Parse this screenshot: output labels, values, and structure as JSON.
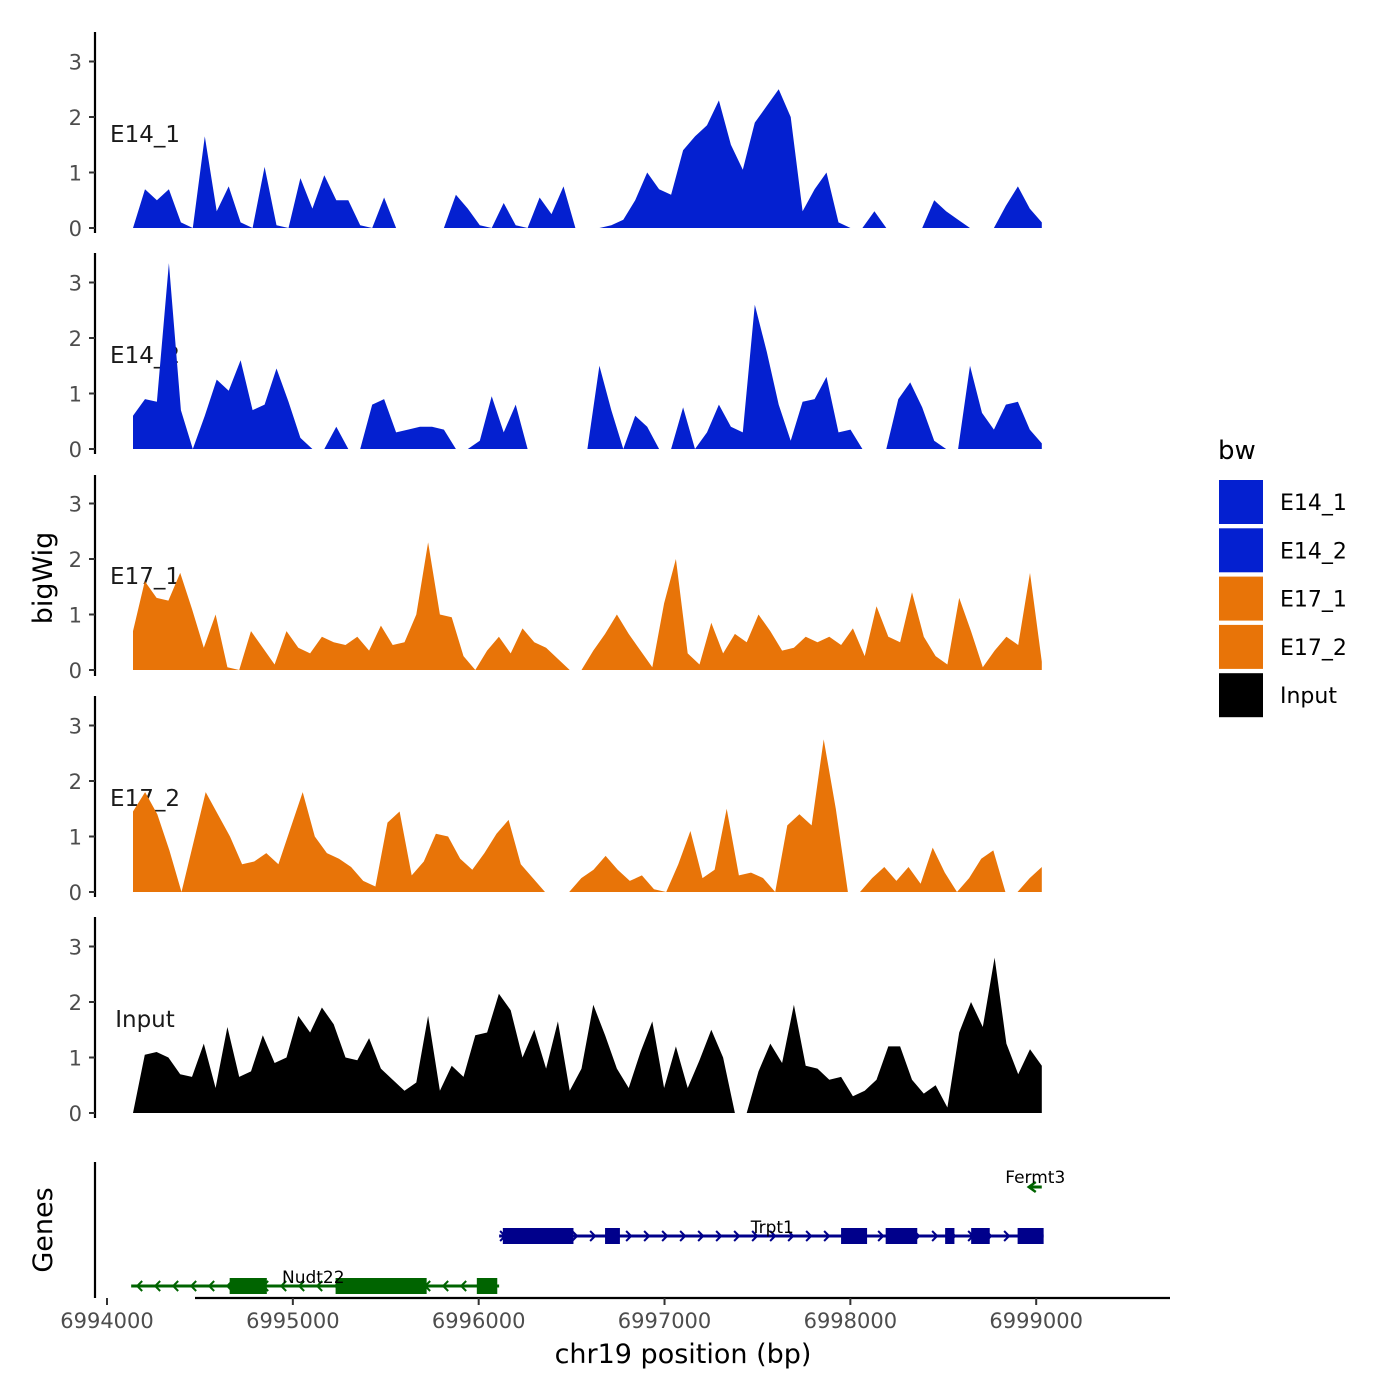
{
  "chart_data": {
    "type": "area",
    "title": "",
    "ylabel": "bigWig",
    "ylim": [
      0,
      3.5
    ],
    "yticks": [
      "0",
      "1",
      "2",
      "3"
    ],
    "x_range": [
      6993930,
      6999720
    ],
    "track_x_extent": [
      6994140,
      6999030
    ],
    "legend": {
      "title": "bw",
      "position": "right",
      "items": [
        {
          "label": "E14_1",
          "color": "#0420D0"
        },
        {
          "label": "E14_2",
          "color": "#0420D0"
        },
        {
          "label": "E17_1",
          "color": "#E87408"
        },
        {
          "label": "E17_2",
          "color": "#E87408"
        },
        {
          "label": "Input",
          "color": "#000000"
        }
      ]
    },
    "series": [
      {
        "name": "E14_1",
        "color": "#0420D0",
        "values": [
          0,
          0.7,
          0.5,
          0.7,
          0.1,
          0,
          1.65,
          0.3,
          0.75,
          0.1,
          0,
          1.1,
          0.05,
          0,
          0.9,
          0.35,
          0.95,
          0.5,
          0.5,
          0.05,
          0,
          0.55,
          0,
          0,
          0,
          0,
          0,
          0.6,
          0.35,
          0.05,
          0,
          0.45,
          0.05,
          0,
          0.55,
          0.25,
          0.75,
          0,
          0,
          0,
          0.05,
          0.15,
          0.5,
          1.0,
          0.7,
          0.6,
          1.4,
          1.65,
          1.85,
          2.3,
          1.5,
          1.05,
          1.9,
          2.2,
          2.5,
          2.0,
          0.3,
          0.7,
          1.0,
          0.1,
          0,
          0,
          0.3,
          0,
          0,
          0,
          0,
          0.5,
          0.3,
          0.15,
          0,
          0,
          0,
          0.4,
          0.75,
          0.35,
          0.1
        ]
      },
      {
        "name": "E14_2",
        "color": "#0420D0",
        "values": [
          0.6,
          0.9,
          0.85,
          3.35,
          0.7,
          0,
          0.6,
          1.25,
          1.05,
          1.6,
          0.7,
          0.8,
          1.45,
          0.85,
          0.2,
          0,
          0,
          0.4,
          0,
          0,
          0.8,
          0.9,
          0.3,
          0.35,
          0.4,
          0.4,
          0.35,
          0,
          0,
          0.15,
          0.95,
          0.3,
          0.8,
          0,
          0,
          0,
          0,
          0,
          0,
          1.5,
          0.7,
          0,
          0.6,
          0.4,
          0,
          0,
          0.75,
          0,
          0.3,
          0.8,
          0.4,
          0.3,
          2.6,
          1.75,
          0.8,
          0.15,
          0.85,
          0.9,
          1.3,
          0.3,
          0.35,
          0,
          0,
          0,
          0.9,
          1.2,
          0.75,
          0.15,
          0,
          0,
          1.5,
          0.65,
          0.35,
          0.8,
          0.85,
          0.35,
          0.1
        ]
      },
      {
        "name": "E17_1",
        "color": "#E87408",
        "values": [
          0.7,
          1.6,
          1.3,
          1.25,
          1.75,
          1.1,
          0.4,
          1.0,
          0.05,
          0,
          0.7,
          0.4,
          0.1,
          0.7,
          0.4,
          0.3,
          0.6,
          0.5,
          0.45,
          0.6,
          0.35,
          0.8,
          0.45,
          0.5,
          1.0,
          2.3,
          1.0,
          0.95,
          0.25,
          0,
          0.35,
          0.6,
          0.3,
          0.75,
          0.5,
          0.4,
          0.2,
          0,
          0,
          0.35,
          0.65,
          1.0,
          0.65,
          0.35,
          0.05,
          1.2,
          2.0,
          0.3,
          0.1,
          0.85,
          0.3,
          0.65,
          0.5,
          1.0,
          0.7,
          0.35,
          0.4,
          0.6,
          0.5,
          0.6,
          0.45,
          0.75,
          0.25,
          1.15,
          0.6,
          0.5,
          1.4,
          0.6,
          0.25,
          0.1,
          1.3,
          0.7,
          0.05,
          0.35,
          0.6,
          0.45,
          1.75,
          0.15
        ]
      },
      {
        "name": "E17_2",
        "color": "#E87408",
        "values": [
          1.45,
          1.8,
          1.4,
          0.75,
          0,
          0.9,
          1.8,
          1.4,
          1.0,
          0.5,
          0.55,
          0.7,
          0.5,
          1.15,
          1.8,
          1.0,
          0.7,
          0.6,
          0.45,
          0.2,
          0.1,
          1.25,
          1.45,
          0.3,
          0.55,
          1.05,
          1.0,
          0.6,
          0.4,
          0.7,
          1.05,
          1.3,
          0.5,
          0.25,
          0,
          0,
          0,
          0.25,
          0.4,
          0.65,
          0.4,
          0.2,
          0.3,
          0.05,
          0,
          0.5,
          1.1,
          0.25,
          0.4,
          1.5,
          0.3,
          0.35,
          0.25,
          0,
          1.2,
          1.4,
          1.2,
          2.75,
          1.5,
          0,
          0,
          0.25,
          0.45,
          0.2,
          0.45,
          0.15,
          0.8,
          0.35,
          0,
          0.25,
          0.6,
          0.75,
          0,
          0,
          0.25,
          0.45
        ]
      },
      {
        "name": "Input",
        "color": "#000000",
        "values": [
          0,
          1.05,
          1.1,
          1.0,
          0.7,
          0.65,
          1.25,
          0.45,
          1.55,
          0.65,
          0.75,
          1.4,
          0.9,
          1.0,
          1.75,
          1.45,
          1.9,
          1.6,
          1.0,
          0.95,
          1.35,
          0.8,
          0.6,
          0.4,
          0.55,
          1.75,
          0.4,
          0.85,
          0.65,
          1.4,
          1.45,
          2.15,
          1.85,
          1.0,
          1.5,
          0.8,
          1.65,
          0.4,
          0.8,
          1.95,
          1.4,
          0.8,
          0.45,
          1.1,
          1.65,
          0.45,
          1.2,
          0.45,
          0.95,
          1.5,
          1.0,
          0,
          0,
          0.75,
          1.25,
          0.9,
          1.95,
          0.85,
          0.8,
          0.6,
          0.65,
          0.3,
          0.4,
          0.6,
          1.2,
          1.2,
          0.6,
          0.35,
          0.5,
          0.1,
          1.45,
          2.0,
          1.55,
          2.8,
          1.25,
          0.7,
          1.15,
          0.85
        ]
      }
    ],
    "gene_track": {
      "label": "Genes",
      "genes": [
        {
          "name": "Fermt3",
          "strand": "-",
          "row": 1,
          "color": "#006400",
          "start": 6998960,
          "end": 6999030,
          "exons": []
        },
        {
          "name": "Trpt1",
          "strand": "+",
          "row": 2,
          "color": "#00008B",
          "start": 6996110,
          "end": 6999040,
          "exons": [
            [
              6996130,
              6996510
            ],
            [
              6996680,
              6996760
            ],
            [
              6997950,
              6998090
            ],
            [
              6998190,
              6998360
            ],
            [
              6998510,
              6998560
            ],
            [
              6998650,
              6998750
            ],
            [
              6998900,
              6999040
            ]
          ]
        },
        {
          "name": "Nudt22",
          "strand": "-",
          "row": 3,
          "color": "#006400",
          "start": 6994130,
          "end": 6996110,
          "exons": [
            [
              6994660,
              6994860
            ],
            [
              6995230,
              6995720
            ],
            [
              6995990,
              6996100
            ]
          ]
        }
      ]
    },
    "xlabel": "chr19 position (bp)",
    "xticks": [
      "6994000",
      "6995000",
      "6996000",
      "6997000",
      "6998000",
      "6999000"
    ],
    "xtick_values": [
      6994000,
      6995000,
      6996000,
      6997000,
      6998000,
      6999000
    ]
  }
}
